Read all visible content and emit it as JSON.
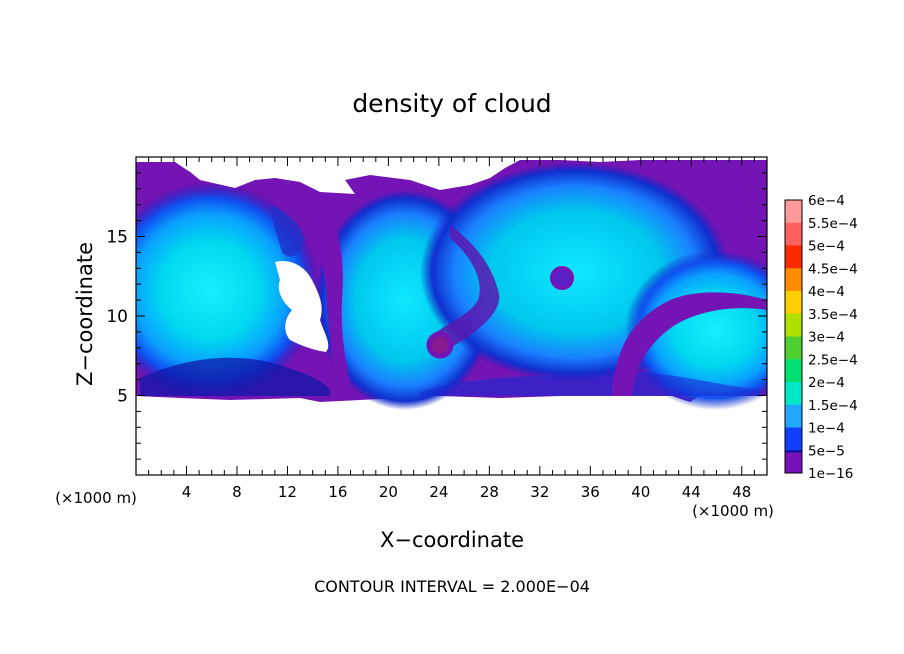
{
  "chart_data": {
    "type": "heatmap",
    "title": "density of cloud",
    "xlabel": "X−coordinate",
    "ylabel": "Z−coordinate",
    "x_unit_label": "(×1000 m)",
    "y_unit_label": "(×1000 m)",
    "xlim": [
      0,
      50
    ],
    "ylim": [
      0,
      20
    ],
    "x_ticks": [
      4,
      8,
      12,
      16,
      20,
      24,
      28,
      32,
      36,
      40,
      44,
      48
    ],
    "y_ticks": [
      5,
      10,
      15
    ],
    "footnote": "CONTOUR INTERVAL = 2.000E−04",
    "colorbar": {
      "labels": [
        "6e−4",
        "5.5e−4",
        "5e−4",
        "4.5e−4",
        "4e−4",
        "3.5e−4",
        "3e−4",
        "2.5e−4",
        "2e−4",
        "1.5e−4",
        "1e−4",
        "5e−5",
        "1e−16"
      ],
      "values": [
        0.0006,
        0.00055,
        0.0005,
        0.00045,
        0.0004,
        0.00035,
        0.0003,
        0.00025,
        0.0002,
        0.00015,
        0.0001,
        5e-05,
        1e-16
      ],
      "colors": [
        "#ff9a9a",
        "#ff6060",
        "#ff2a00",
        "#ff8c00",
        "#ffd000",
        "#b0e000",
        "#50d030",
        "#00e070",
        "#00e8c8",
        "#20a8ff",
        "#1040ff",
        "#1010a0",
        "#7a10b8"
      ]
    },
    "field": {
      "cloud_base_z": 5,
      "cloud_top_z": 19.5,
      "cells": [
        {
          "x": 3.5,
          "z": 12.5,
          "value": 0.00018
        },
        {
          "x": 20.5,
          "z": 12.0,
          "value": 0.00019
        },
        {
          "x": 34.0,
          "z": 14.0,
          "value": 0.00019
        },
        {
          "x": 46.0,
          "z": 9.5,
          "value": 0.00018
        }
      ]
    }
  }
}
